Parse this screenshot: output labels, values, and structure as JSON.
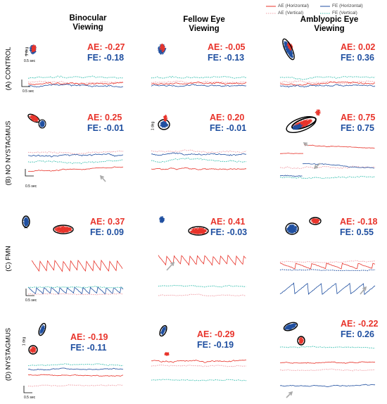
{
  "legend": [
    {
      "label": "AE (Horizontal)",
      "color": "#e8332a",
      "style": "solid"
    },
    {
      "label": "FE (Horizontal)",
      "color": "#1f4fa0",
      "style": "solid"
    },
    {
      "label": "AE (Vertical)",
      "color": "#f0a0a8",
      "style": "dotted"
    },
    {
      "label": "FE (Vertical)",
      "color": "#3cc0b0",
      "style": "dotted"
    }
  ],
  "columns": [
    {
      "title_line1": "Binocular",
      "title_line2": "Viewing"
    },
    {
      "title_line1": "Fellow Eye",
      "title_line2": "Viewing"
    },
    {
      "title_line1": "Amblyopic Eye",
      "title_line2": "Viewing"
    }
  ],
  "rows": [
    {
      "label": "(A) CONTROL",
      "cells": [
        {
          "ae": "AE: -0.27",
          "fe": "FE: -0.18"
        },
        {
          "ae": "AE: -0.05",
          "fe": "FE: -0.13"
        },
        {
          "ae": "AE: 0.02",
          "fe": "FE: 0.36"
        }
      ]
    },
    {
      "label": "(B) NO NYSTAGMUS",
      "cells": [
        {
          "ae": "AE: 0.25",
          "fe": "FE: -0.01"
        },
        {
          "ae": "AE: 0.20",
          "fe": "FE: -0.01"
        },
        {
          "ae": "AE: 0.75",
          "fe": "FE: 0.75"
        }
      ]
    },
    {
      "label": "(C) FMN",
      "cells": [
        {
          "ae": "AE: 0.37",
          "fe": "FE: 0.09"
        },
        {
          "ae": "AE: 0.41",
          "fe": "FE: -0.03"
        },
        {
          "ae": "AE: -0.18",
          "fe": "FE: 0.55"
        }
      ]
    },
    {
      "label": "(D) NYSTAGMUS",
      "cells": [
        {
          "ae": "AE: -0.19",
          "fe": "FE: -0.11"
        },
        {
          "ae": "AE: -0.29",
          "fe": "FE: -0.19"
        },
        {
          "ae": "AE: -0.22",
          "fe": "FE: 0.26"
        }
      ]
    }
  ],
  "scale": {
    "deg": "1 deg",
    "time": "0.5 sec"
  },
  "colors": {
    "ae_h": "#e8332a",
    "fe_h": "#1f4fa0",
    "ae_v": "#f0a0a8",
    "fe_v": "#3cc0b0",
    "bcea": "#000000"
  }
}
